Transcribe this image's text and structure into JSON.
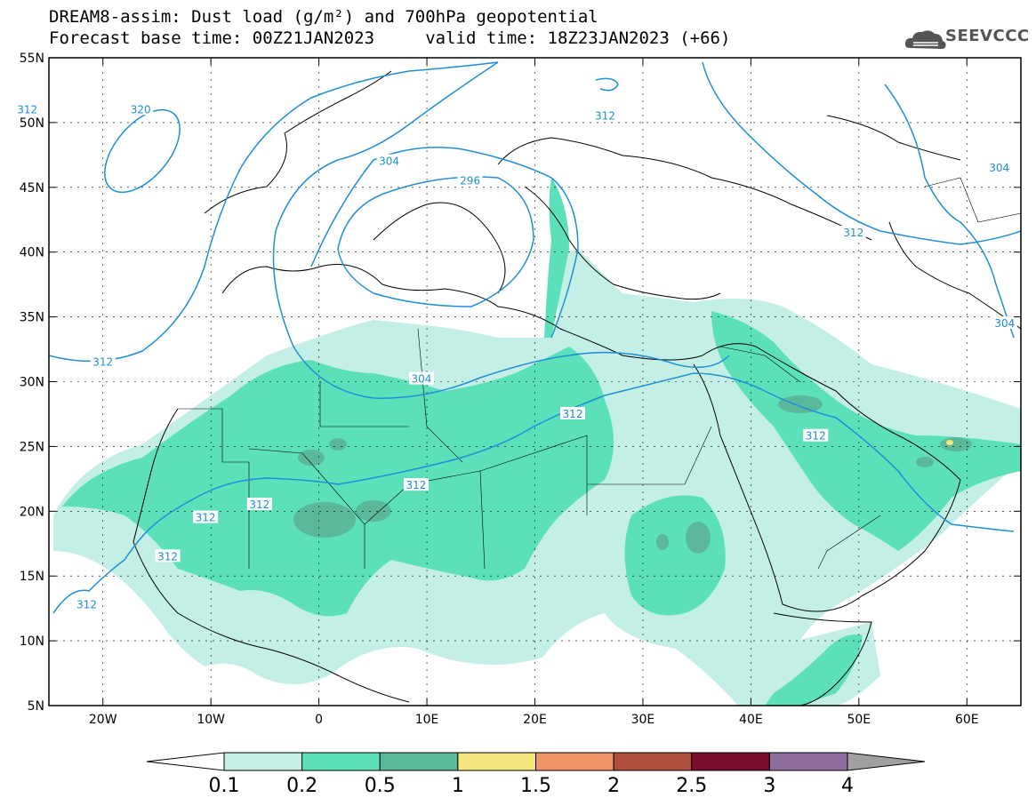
{
  "title": {
    "line1": "DREAM8-assim: Dust load (g/m²) and 700hPa geopotential",
    "line2": "Forecast base time: 00Z21JAN2023     valid time: 18Z23JAN2023 (+66)"
  },
  "logo": {
    "text": "SEEVCCC",
    "icon": "cloud-icon"
  },
  "axes": {
    "lat_labels": [
      "55N",
      "50N",
      "45N",
      "40N",
      "35N",
      "30N",
      "25N",
      "20N",
      "15N",
      "10N",
      "5N"
    ],
    "lat_values": [
      55,
      50,
      45,
      40,
      35,
      30,
      25,
      20,
      15,
      10,
      5
    ],
    "lon_labels": [
      "20W",
      "10W",
      "0",
      "10E",
      "20E",
      "30E",
      "40E",
      "50E",
      "60E"
    ],
    "lon_values": [
      -20,
      -10,
      0,
      10,
      20,
      30,
      40,
      50,
      60
    ],
    "lon_range": [
      -25,
      65
    ],
    "lat_range": [
      5,
      55
    ],
    "grid": true
  },
  "contours": {
    "color": "#1e8fd6",
    "labels": [
      {
        "text": "320",
        "lon": -16.5,
        "lat": 51
      },
      {
        "text": "312",
        "lon": -27,
        "lat": 51
      },
      {
        "text": "304",
        "lon": 6.5,
        "lat": 47
      },
      {
        "text": "296",
        "lon": 14,
        "lat": 45.5
      },
      {
        "text": "312",
        "lon": 26.5,
        "lat": 50.5
      },
      {
        "text": "304",
        "lon": 63,
        "lat": 46.5
      },
      {
        "text": "312",
        "lon": 49.5,
        "lat": 41.5
      },
      {
        "text": "304",
        "lon": 63.5,
        "lat": 34.5
      },
      {
        "text": "312",
        "lon": -20,
        "lat": 31.5
      },
      {
        "text": "304",
        "lon": 9.5,
        "lat": 30.2
      },
      {
        "text": "312",
        "lon": 23.5,
        "lat": 27.5
      },
      {
        "text": "312",
        "lon": 46,
        "lat": 25.8
      },
      {
        "text": "312",
        "lon": 9,
        "lat": 22
      },
      {
        "text": "312",
        "lon": -5.5,
        "lat": 20.5
      },
      {
        "text": "312",
        "lon": -10.5,
        "lat": 19.5
      },
      {
        "text": "312",
        "lon": -14,
        "lat": 16.5
      },
      {
        "text": "312",
        "lon": -21.5,
        "lat": 12.8
      }
    ]
  },
  "colorbar": {
    "labels": [
      "0.1",
      "0.2",
      "0.5",
      "1",
      "1.5",
      "2",
      "2.5",
      "3",
      "4"
    ],
    "colors": [
      "#c3efe6",
      "#5ce0b9",
      "#5bb89a",
      "#f5e57d",
      "#ef9466",
      "#b04e3e",
      "#7a0d2e",
      "#8e6c9e"
    ],
    "under_color": "#ffffff",
    "over_color": "#a0a0a0"
  }
}
